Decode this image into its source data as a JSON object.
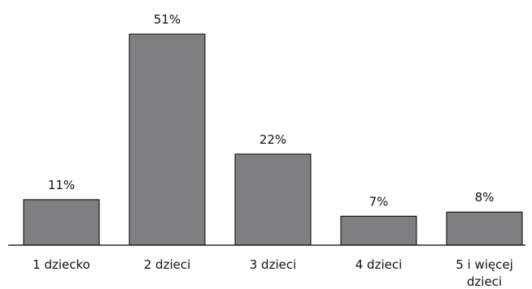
{
  "chart_data": {
    "type": "bar",
    "categories": [
      "1 dziecko",
      "2 dzieci",
      "3 dzieci",
      "4 dzieci",
      "5 i więcej dzieci"
    ],
    "values": [
      11,
      51,
      22,
      7,
      8
    ],
    "value_labels": [
      "11%",
      "51%",
      "22%",
      "7%",
      "8%"
    ],
    "title": "",
    "xlabel": "",
    "ylabel": "",
    "ylim": [
      0,
      51
    ],
    "grid": false,
    "legend": "none",
    "colors": {
      "bar_fill": "#7f7f81",
      "bar_stroke": "#000000",
      "axis": "#000000",
      "text": "#111111"
    }
  }
}
